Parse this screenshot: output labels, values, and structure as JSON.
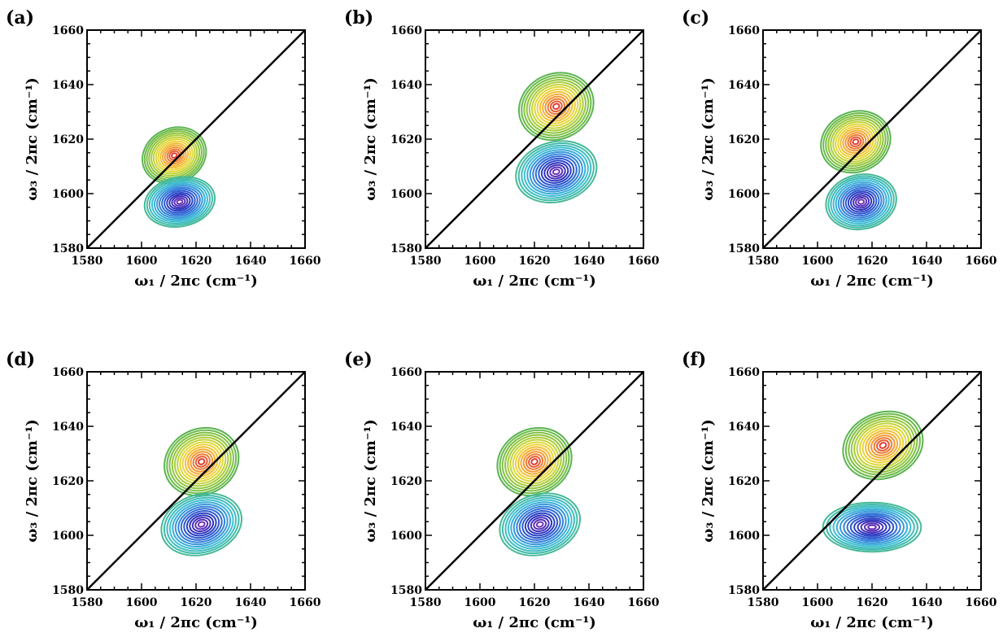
{
  "chart_data": [
    {
      "type": "contour",
      "panel_label": "(a)",
      "xlabel": "ω₁ / 2πc (cm⁻¹)",
      "ylabel": "ω₃ / 2πc (cm⁻¹)",
      "xlim": [
        1580,
        1660
      ],
      "ylim": [
        1580,
        1660
      ],
      "xticks": [
        1580,
        1600,
        1620,
        1640,
        1660
      ],
      "yticks": [
        1580,
        1600,
        1620,
        1640,
        1660
      ],
      "diagonal": true,
      "peaks": [
        {
          "sign": "positive",
          "x": 1612,
          "y": 1614,
          "sx": 12,
          "sy": 10,
          "tilt": 0.45
        },
        {
          "sign": "negative",
          "x": 1614,
          "y": 1597,
          "sx": 13,
          "sy": 9,
          "tilt": 0.2
        }
      ]
    },
    {
      "type": "contour",
      "panel_label": "(b)",
      "xlabel": "ω₁ / 2πc (cm⁻¹)",
      "ylabel": "ω₃ / 2πc (cm⁻¹)",
      "xlim": [
        1580,
        1660
      ],
      "ylim": [
        1580,
        1660
      ],
      "xticks": [
        1580,
        1600,
        1620,
        1640,
        1660
      ],
      "yticks": [
        1580,
        1600,
        1620,
        1640,
        1660
      ],
      "diagonal": true,
      "peaks": [
        {
          "sign": "positive",
          "x": 1628,
          "y": 1632,
          "sx": 14,
          "sy": 12,
          "tilt": 0.45
        },
        {
          "sign": "negative",
          "x": 1628,
          "y": 1608,
          "sx": 15,
          "sy": 11,
          "tilt": 0.25
        }
      ]
    },
    {
      "type": "contour",
      "panel_label": "(c)",
      "xlabel": "ω₁ / 2πc (cm⁻¹)",
      "ylabel": "ω₃ / 2πc (cm⁻¹)",
      "xlim": [
        1580,
        1660
      ],
      "ylim": [
        1580,
        1660
      ],
      "xticks": [
        1580,
        1600,
        1620,
        1640,
        1660
      ],
      "yticks": [
        1580,
        1600,
        1620,
        1640,
        1660
      ],
      "diagonal": true,
      "peaks": [
        {
          "sign": "positive",
          "x": 1614,
          "y": 1619,
          "sx": 13,
          "sy": 11,
          "tilt": 0.4
        },
        {
          "sign": "negative",
          "x": 1616,
          "y": 1597,
          "sx": 13,
          "sy": 10,
          "tilt": 0.2
        }
      ]
    },
    {
      "type": "contour",
      "panel_label": "(d)",
      "xlabel": "ω₁ / 2πc (cm⁻¹)",
      "ylabel": "ω₃ / 2πc (cm⁻¹)",
      "xlim": [
        1580,
        1660
      ],
      "ylim": [
        1580,
        1660
      ],
      "xticks": [
        1580,
        1600,
        1620,
        1640,
        1660
      ],
      "yticks": [
        1580,
        1600,
        1620,
        1640,
        1660
      ],
      "diagonal": true,
      "peaks": [
        {
          "sign": "positive",
          "x": 1622,
          "y": 1627,
          "sx": 14,
          "sy": 12,
          "tilt": 0.5
        },
        {
          "sign": "negative",
          "x": 1622,
          "y": 1604,
          "sx": 15,
          "sy": 11,
          "tilt": 0.3
        }
      ]
    },
    {
      "type": "contour",
      "panel_label": "(e)",
      "xlabel": "ω₁ / 2πc (cm⁻¹)",
      "ylabel": "ω₃ / 2πc (cm⁻¹)",
      "xlim": [
        1580,
        1660
      ],
      "ylim": [
        1580,
        1660
      ],
      "xticks": [
        1580,
        1600,
        1620,
        1640,
        1660
      ],
      "yticks": [
        1580,
        1600,
        1620,
        1640,
        1660
      ],
      "diagonal": true,
      "peaks": [
        {
          "sign": "positive",
          "x": 1620,
          "y": 1627,
          "sx": 14,
          "sy": 12,
          "tilt": 0.5
        },
        {
          "sign": "negative",
          "x": 1622,
          "y": 1604,
          "sx": 15,
          "sy": 11,
          "tilt": 0.3
        }
      ]
    },
    {
      "type": "contour",
      "panel_label": "(f)",
      "xlabel": "ω₁ / 2πc (cm⁻¹)",
      "ylabel": "ω₃ / 2πc (cm⁻¹)",
      "xlim": [
        1580,
        1660
      ],
      "ylim": [
        1580,
        1660
      ],
      "xticks": [
        1580,
        1600,
        1620,
        1640,
        1660
      ],
      "yticks": [
        1580,
        1600,
        1620,
        1640,
        1660
      ],
      "diagonal": true,
      "peaks": [
        {
          "sign": "positive",
          "x": 1624,
          "y": 1633,
          "sx": 15,
          "sy": 12,
          "tilt": 0.4
        },
        {
          "sign": "negative",
          "x": 1620,
          "y": 1603,
          "sx": 18,
          "sy": 9,
          "tilt": 0.0
        }
      ]
    }
  ]
}
